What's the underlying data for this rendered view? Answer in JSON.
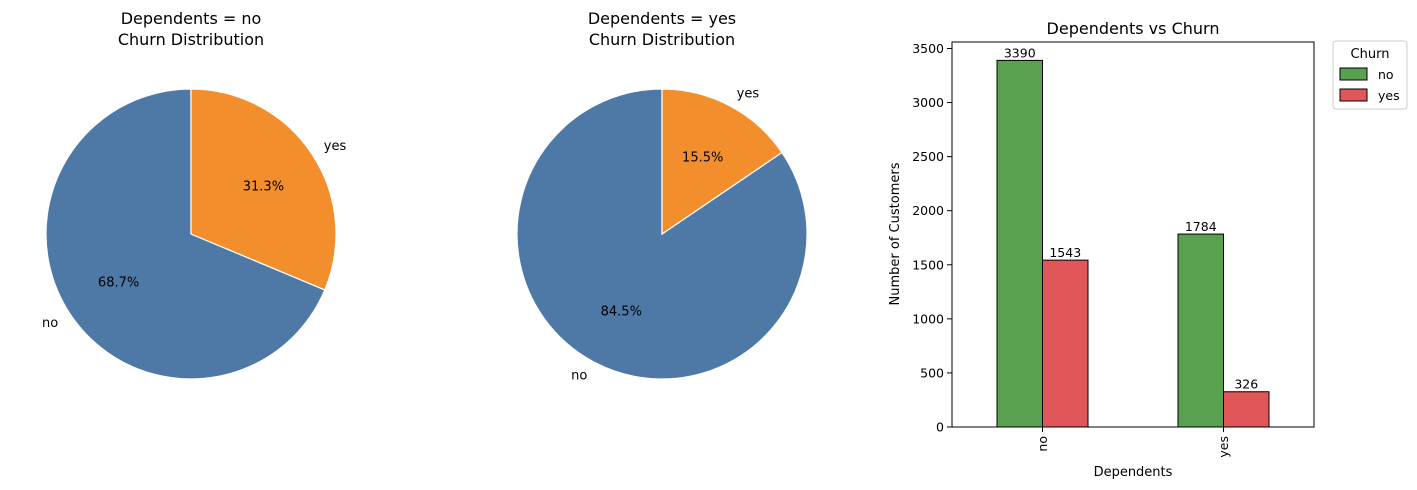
{
  "colors": {
    "pie_no": "#4e79a7",
    "pie_yes": "#f28e2b",
    "bar_no": "#59a14f",
    "bar_yes": "#e15759",
    "edge": "#000000",
    "wedge_edge": "#ffffff"
  },
  "chart_data": [
    {
      "type": "pie",
      "title_lines": [
        "Dependents = no",
        "Churn Distribution"
      ],
      "slices": [
        {
          "label": "no",
          "value": 68.7,
          "pct_label": "68.7%"
        },
        {
          "label": "yes",
          "value": 31.3,
          "pct_label": "31.3%"
        }
      ],
      "start": "top",
      "direction": "counterclockwise"
    },
    {
      "type": "pie",
      "title_lines": [
        "Dependents = yes",
        "Churn Distribution"
      ],
      "slices": [
        {
          "label": "no",
          "value": 84.5,
          "pct_label": "84.5%"
        },
        {
          "label": "yes",
          "value": 15.5,
          "pct_label": "15.5%"
        }
      ],
      "start": "top",
      "direction": "counterclockwise"
    },
    {
      "type": "bar",
      "title": "Dependents vs Churn",
      "xlabel": "Dependents",
      "ylabel": "Number of Customers",
      "categories": [
        "no",
        "yes"
      ],
      "series": [
        {
          "name": "no",
          "values": [
            3390,
            1784
          ]
        },
        {
          "name": "yes",
          "values": [
            1543,
            326
          ]
        }
      ],
      "ylim": [
        0,
        3560
      ],
      "yticks": [
        0,
        500,
        1000,
        1500,
        2000,
        2500,
        3000,
        3500
      ],
      "legend": {
        "title": "Churn",
        "placement": "outside-top-right"
      },
      "grid": false
    }
  ]
}
